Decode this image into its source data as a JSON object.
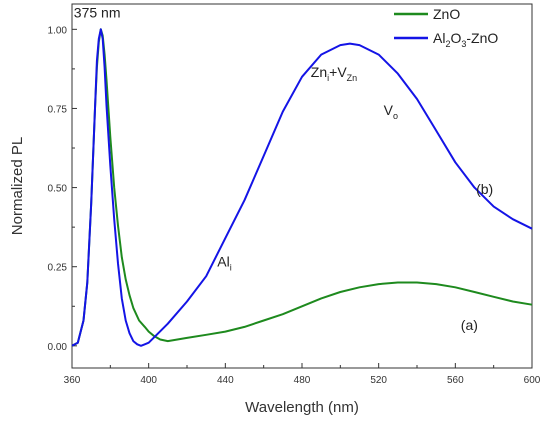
{
  "chart_data": {
    "type": "line",
    "xlabel": "Wavelength (nm)",
    "ylabel": "Normalized PL",
    "xlim": [
      360,
      600
    ],
    "ylim": [
      -0.07,
      1.08
    ],
    "xticks": [
      360,
      400,
      440,
      480,
      520,
      560,
      600
    ],
    "xtick_labels": [
      "360",
      "400",
      "440",
      "480",
      "520",
      "560",
      "600"
    ],
    "yticks": [
      0.0,
      0.25,
      0.5,
      0.75,
      1.0
    ],
    "ytick_labels": [
      "0.00",
      "0.25",
      "0.50",
      "0.75",
      "1.00"
    ],
    "grid": false,
    "legend_position": "top-right",
    "series": [
      {
        "name": "ZnO",
        "color": "#1e8a1e",
        "x": [
          360,
          363,
          366,
          368,
          370,
          372,
          373,
          374,
          375,
          376,
          377,
          378,
          380,
          382,
          384,
          386,
          388,
          390,
          392,
          395,
          398,
          400,
          403,
          406,
          410,
          415,
          420,
          430,
          440,
          450,
          460,
          470,
          480,
          490,
          500,
          510,
          520,
          530,
          540,
          550,
          560,
          570,
          580,
          590,
          600
        ],
        "y": [
          0.0,
          0.01,
          0.08,
          0.2,
          0.45,
          0.75,
          0.88,
          0.96,
          1.0,
          0.98,
          0.92,
          0.84,
          0.66,
          0.5,
          0.38,
          0.28,
          0.21,
          0.16,
          0.12,
          0.08,
          0.06,
          0.045,
          0.03,
          0.02,
          0.015,
          0.02,
          0.025,
          0.035,
          0.045,
          0.06,
          0.08,
          0.1,
          0.125,
          0.15,
          0.17,
          0.185,
          0.195,
          0.2,
          0.2,
          0.195,
          0.185,
          0.17,
          0.155,
          0.14,
          0.13
        ]
      },
      {
        "name": "Al2O3-ZnO",
        "color": "#1414e6",
        "x": [
          360,
          363,
          366,
          368,
          370,
          372,
          373,
          374,
          375,
          376,
          377,
          378,
          380,
          382,
          384,
          386,
          388,
          390,
          392,
          394,
          396,
          398,
          400,
          405,
          410,
          420,
          430,
          440,
          450,
          460,
          470,
          480,
          490,
          500,
          505,
          510,
          520,
          530,
          540,
          550,
          560,
          570,
          580,
          590,
          600
        ],
        "y": [
          0.0,
          0.01,
          0.08,
          0.2,
          0.45,
          0.75,
          0.9,
          0.97,
          1.0,
          0.97,
          0.88,
          0.76,
          0.57,
          0.4,
          0.26,
          0.15,
          0.08,
          0.04,
          0.015,
          0.005,
          0.0,
          0.005,
          0.01,
          0.04,
          0.07,
          0.14,
          0.22,
          0.34,
          0.46,
          0.6,
          0.74,
          0.85,
          0.92,
          0.95,
          0.955,
          0.95,
          0.92,
          0.86,
          0.78,
          0.68,
          0.58,
          0.5,
          0.44,
          0.4,
          0.37
        ]
      }
    ],
    "legend": [
      {
        "label": "ZnO",
        "color": "#1e8a1e"
      },
      {
        "label_main": "Al",
        "label_sub1": "2",
        "label_mid": "O",
        "label_sub2": "3",
        "label_end": "-ZnO",
        "color": "#1414e6"
      }
    ],
    "annotations": {
      "peak": {
        "text": "375 nm",
        "x": 375,
        "y": 1.0
      },
      "zni_vzn": {
        "a": "Zn",
        "a_sub": "i",
        "b": "+V",
        "b_sub": "Zn",
        "x": 495,
        "y": 0.85
      },
      "vo": {
        "main": "V",
        "sub": "o",
        "x": 533,
        "y": 0.73
      },
      "ali": {
        "main": "Al",
        "sub": "i",
        "x": 440,
        "y": 0.25
      },
      "label_b": {
        "text": "(b)",
        "x": 575,
        "y": 0.48
      },
      "label_a": {
        "text": "(a)",
        "x": 567,
        "y": 0.05
      }
    }
  }
}
